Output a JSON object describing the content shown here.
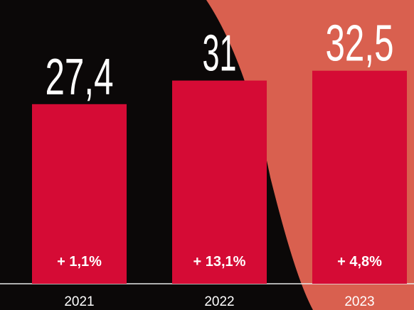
{
  "chart_data": {
    "type": "bar",
    "categories": [
      "2021",
      "2022",
      "2023"
    ],
    "values": [
      27.4,
      31,
      32.5
    ],
    "value_labels": [
      "27,4",
      "31",
      "32,5"
    ],
    "growth_values": [
      1.1,
      13.1,
      4.8
    ],
    "growth_labels": [
      "+ 1,1%",
      "+ 13,1%",
      "+ 4,8%"
    ],
    "color": "#d50b35",
    "ylim": [
      0,
      40
    ]
  }
}
